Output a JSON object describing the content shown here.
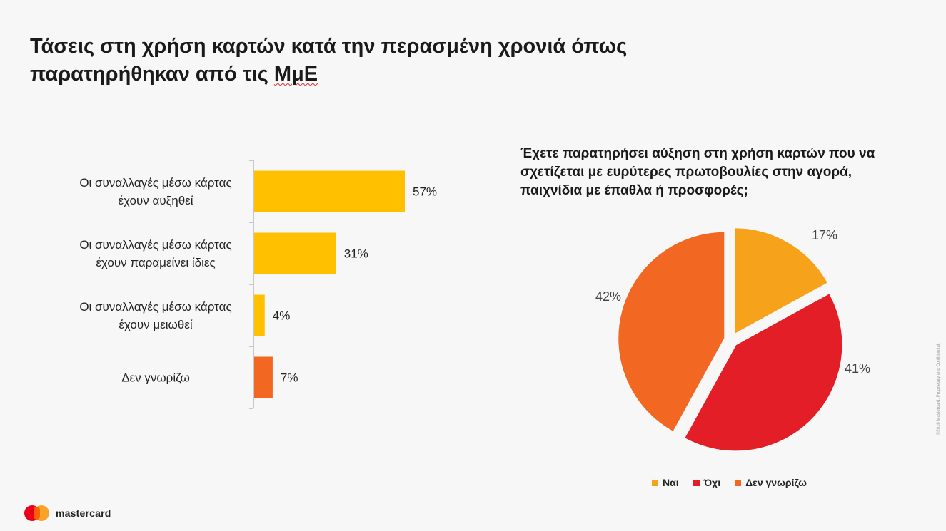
{
  "title": {
    "line1": "Τάσεις στη χρήση καρτών κατά την περασμένη χρονιά όπως",
    "line2_prefix": "παρατηρήθηκαν από τις ",
    "line2_abbr": "ΜμΕ"
  },
  "chart_data": [
    {
      "type": "bar",
      "orientation": "horizontal",
      "categories": [
        [
          "Οι συναλλαγές μέσω κάρτας",
          "έχουν αυξηθεί"
        ],
        [
          "Οι συναλλαγές μέσω κάρτας",
          "έχουν παραμείνει ίδιες"
        ],
        [
          "Οι συναλλαγές μέσω κάρτας",
          "έχουν μειωθεί"
        ],
        [
          "Δεν γνωρίζω"
        ]
      ],
      "values": [
        57,
        31,
        4,
        7
      ],
      "value_labels": [
        "57%",
        "31%",
        "4%",
        "7%"
      ],
      "colors": [
        "#ffc000",
        "#ffc000",
        "#ffc000",
        "#f26722"
      ],
      "xlim": [
        0,
        100
      ]
    },
    {
      "type": "pie",
      "title": "Έχετε παρατηρήσει αύξηση στη χρήση καρτών που να σχετίζεται με ευρύτερες πρωτοβουλίες στην αγορά, παιχνίδια με έπαθλα ή προσφορές;",
      "labels": [
        "Ναι",
        "Όχι",
        "Δεν γνωρίζω"
      ],
      "values": [
        17,
        41,
        42
      ],
      "value_labels": [
        "17%",
        "41%",
        "42%"
      ],
      "colors": [
        "#f7a21b",
        "#e41e26",
        "#f26722"
      ],
      "exploded": true,
      "legend": "bottom"
    }
  ],
  "pie_question": "Έχετε παρατηρήσει αύξηση στη χρήση καρτών που να σχετίζεται με ευρύτερες πρωτοβουλίες στην αγορά, παιχνίδια με έπαθλα ή προσφορές;",
  "footer": {
    "brand": "mastercard",
    "copyright": "©2016 Mastercard. Proprietary and Confidential."
  }
}
